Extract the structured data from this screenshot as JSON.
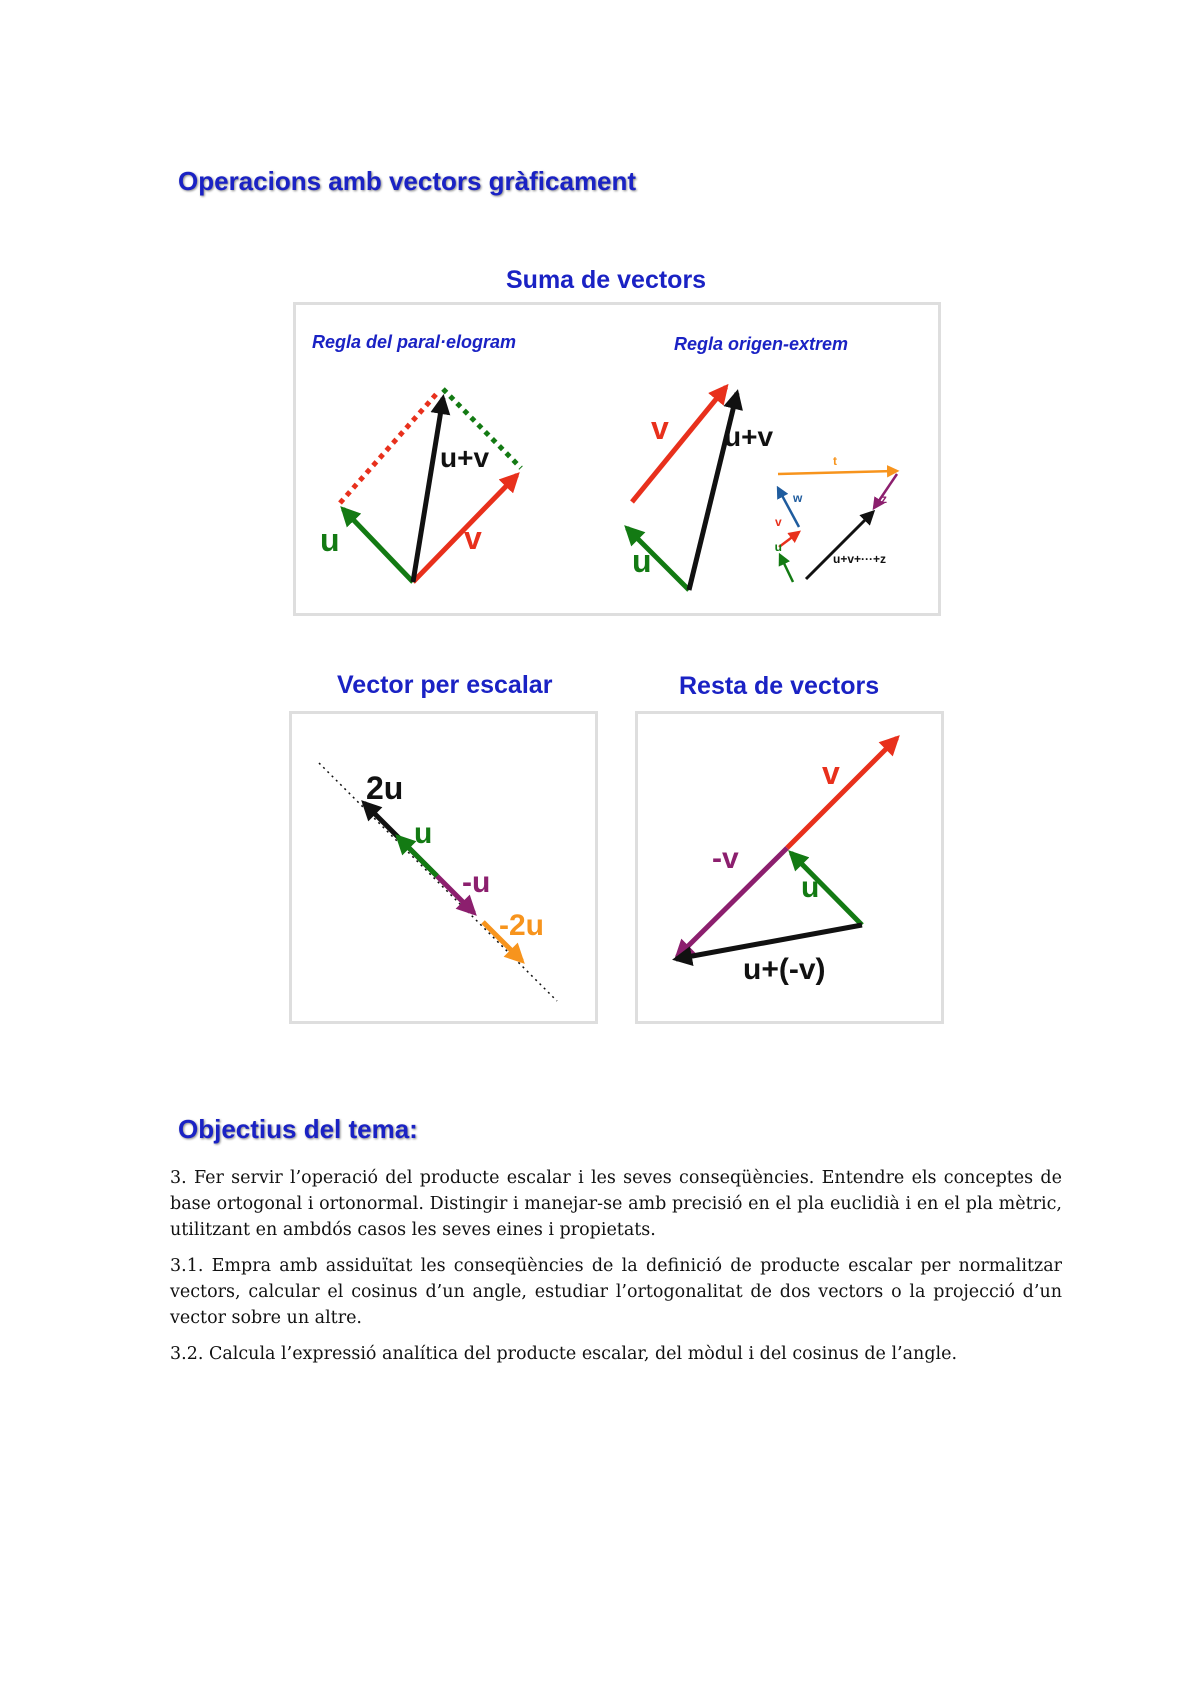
{
  "title": "Operacions amb vectors gràficament",
  "sum": {
    "title": "Suma de vectors",
    "rule_parallelogram": "Regla del paral·elogram",
    "rule_tail_head": "Regla origen-extrem",
    "labels": {
      "u": "u",
      "v": "v",
      "sum": "u+v",
      "t": "t",
      "w": "w",
      "z": "z",
      "multi_sum": "u+v+···+z"
    }
  },
  "scalar": {
    "title": "Vector per escalar",
    "labels": {
      "two_u": "2u",
      "u": "u",
      "neg_u": "-u",
      "neg_two_u": "-2u"
    }
  },
  "difference": {
    "title": "Resta de vectors",
    "labels": {
      "v": "v",
      "neg_v": "-v",
      "u": "u",
      "result": "u+(-v)"
    }
  },
  "objectives": {
    "title": "Objectius del tema:",
    "items": [
      "3. Fer servir l’operació del producte escalar i les seves conseqüències. Entendre els conceptes de base ortogonal i ortonormal. Distingir i manejar-se amb precisió en el pla euclidià i en el pla mètric, utilitzant en ambdós casos les seves eines i propietats.",
      "3.1. Empra amb assiduïtat les conseqüències de la definició de producte escalar per normalitzar vectors, calcular el cosinus d’un angle, estudiar l’ortogonalitat de dos vectors o la projecció d’un vector sobre un altre.",
      "3.2. Calcula l’expressió analítica del producte escalar, del mòdul i del cosinus de l’angle."
    ]
  },
  "colors": {
    "heading": "#1a22c4",
    "red": "#e8301c",
    "green": "#137a13",
    "black": "#111111",
    "purple": "#8c1f6e",
    "orange": "#f7941d",
    "blue": "#1f5c9e"
  }
}
